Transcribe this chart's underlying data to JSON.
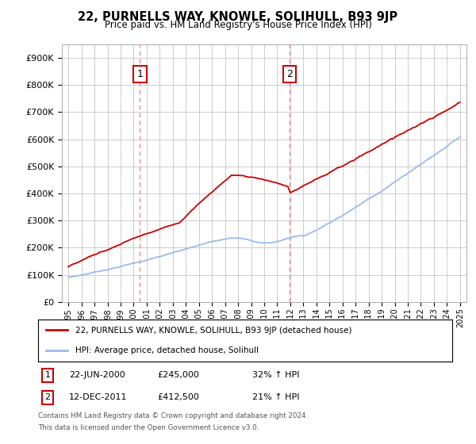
{
  "title": "22, PURNELLS WAY, KNOWLE, SOLIHULL, B93 9JP",
  "subtitle": "Price paid vs. HM Land Registry's House Price Index (HPI)",
  "ylabel_ticks": [
    "£0",
    "£100K",
    "£200K",
    "£300K",
    "£400K",
    "£500K",
    "£600K",
    "£700K",
    "£800K",
    "£900K"
  ],
  "ytick_vals": [
    0,
    100000,
    200000,
    300000,
    400000,
    500000,
    600000,
    700000,
    800000,
    900000
  ],
  "ylim": [
    0,
    950000
  ],
  "sale1_date": 2000.47,
  "sale1_price": 245000,
  "sale2_date": 2011.95,
  "sale2_price": 412500,
  "line1_color": "#cc0000",
  "line2_color": "#99bbee",
  "vline_color": "#ee8888",
  "background_color": "#ffffff",
  "grid_color": "#cccccc",
  "legend_line1": "22, PURNELLS WAY, KNOWLE, SOLIHULL, B93 9JP (detached house)",
  "legend_line2": "HPI: Average price, detached house, Solihull",
  "annotation1_label": "1",
  "annotation1_date": "22-JUN-2000",
  "annotation1_price": "£245,000",
  "annotation1_hpi": "32% ↑ HPI",
  "annotation2_label": "2",
  "annotation2_date": "12-DEC-2011",
  "annotation2_price": "£412,500",
  "annotation2_hpi": "21% ↑ HPI",
  "footnote1": "Contains HM Land Registry data © Crown copyright and database right 2024.",
  "footnote2": "This data is licensed under the Open Government Licence v3.0."
}
